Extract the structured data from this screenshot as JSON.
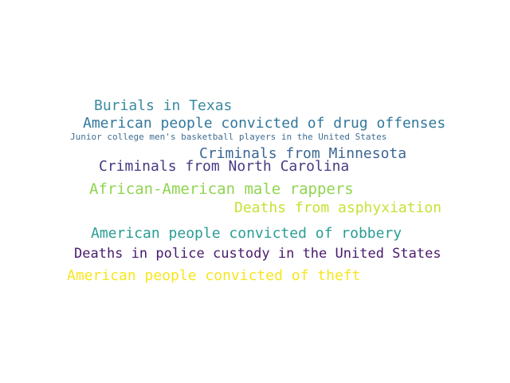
{
  "words": [
    {
      "text": "Burials in Texas",
      "color": "#3a8ba0"
    },
    {
      "text": "American people convicted of drug offenses",
      "color": "#31789b"
    },
    {
      "text": "Junior college men's basketball players in the United States",
      "color": "#3f6e92"
    },
    {
      "text": "Criminals from Minnesota",
      "color": "#3c6794"
    },
    {
      "text": "Criminals from North Carolina",
      "color": "#473b83"
    },
    {
      "text": "African-American male rappers",
      "color": "#8fd550"
    },
    {
      "text": "Deaths from asphyxiation",
      "color": "#c9e135"
    },
    {
      "text": "American people convicted of robbery",
      "color": "#2a9d95"
    },
    {
      "text": "Deaths in police custody in the United States",
      "color": "#481a6c"
    },
    {
      "text": "American people convicted of theft",
      "color": "#f6e620"
    }
  ]
}
